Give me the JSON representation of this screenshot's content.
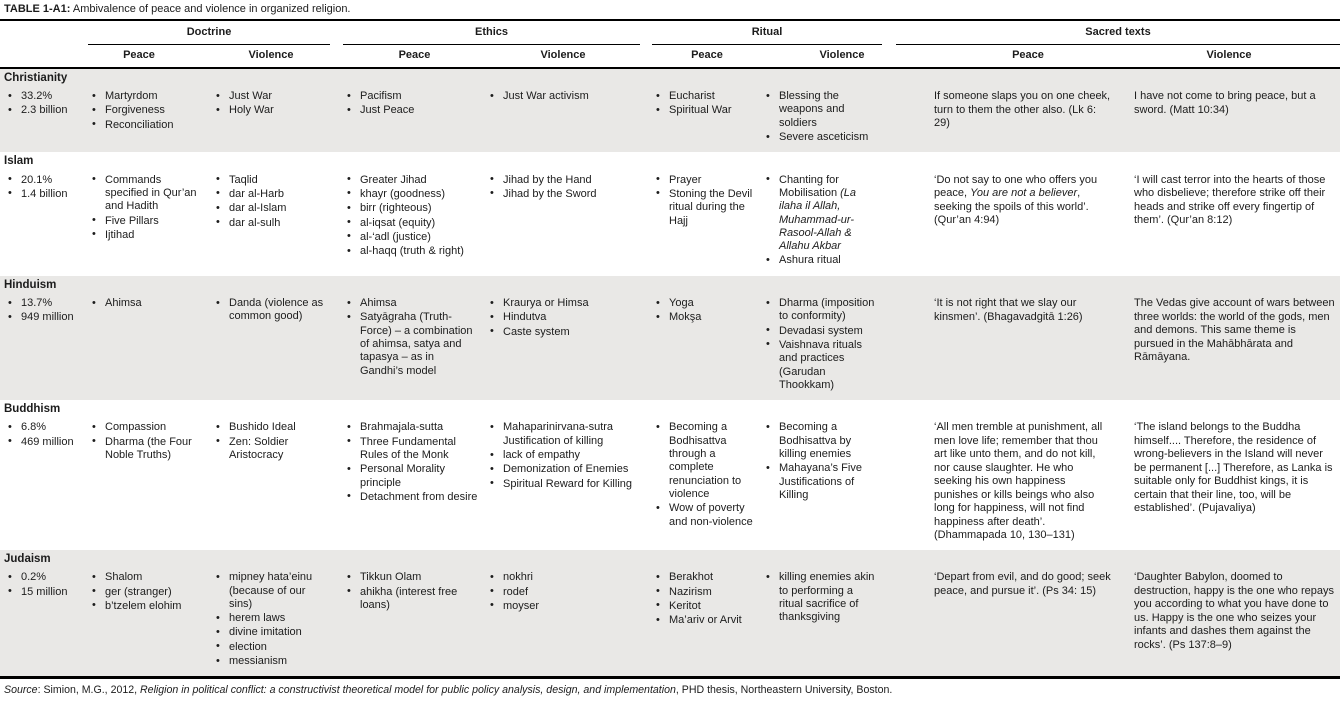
{
  "title": {
    "label": "TABLE 1-A1:",
    "text": " Ambivalence of peace and violence in organized religion."
  },
  "columns": {
    "groups": [
      {
        "label": "Doctrine"
      },
      {
        "label": "Ethics"
      },
      {
        "label": "Ritual"
      },
      {
        "label": "Sacred texts"
      }
    ],
    "subheaders": {
      "peace": "Peace",
      "violence": "Violence"
    }
  },
  "religions": [
    {
      "name": "Christianity",
      "stats": [
        "33.2%",
        "2.3 billion"
      ],
      "doctrine_peace": [
        "Martyrdom",
        "Forgiveness",
        "Reconciliation"
      ],
      "doctrine_violence": [
        "Just War",
        "Holy War"
      ],
      "ethics_peace": [
        "Pacifism",
        "Just Peace"
      ],
      "ethics_violence": [
        "Just War activism"
      ],
      "ritual_peace": [
        "Eucharist",
        "Spiritual War"
      ],
      "ritual_violence": [
        "Blessing the weapons and soldiers",
        "Severe asceticism"
      ],
      "sacred_peace": "If someone slaps you on one cheek, turn to them the other also. (Lk 6: 29)",
      "sacred_violence": "I have not come to bring peace, but a sword. (Matt 10:34)"
    },
    {
      "name": "Islam",
      "stats": [
        "20.1%",
        "1.4 billion"
      ],
      "doctrine_peace": [
        "Commands specified in Qur’an and Hadith",
        "Five Pillars",
        "Ijtihad"
      ],
      "doctrine_violence": [
        "Taqlid",
        "dar al-Harb",
        "dar al-Islam",
        "dar al-sulh"
      ],
      "ethics_peace": [
        "Greater Jihad",
        "khayr (goodness)",
        "birr (righteous)",
        "al-iqsat (equity)",
        "al-‘adl (justice)",
        "al-haqq (truth & right)"
      ],
      "ethics_violence": [
        "Jihad by the Hand",
        "Jihad by the Sword"
      ],
      "ritual_peace": [
        "Prayer",
        "Stoning the Devil ritual during the Hajj"
      ],
      "ritual_violence": [
        [
          {
            "t": "Chanting for Mobilisation "
          },
          {
            "t": "(La ilaha il Allah, Muhammad-ur-Rasool-Allah & Allahu Akbar",
            "i": true
          }
        ],
        "Ashura ritual"
      ],
      "sacred_peace": [
        {
          "t": "‘Do not say to one who offers you peace, "
        },
        {
          "t": "You are not a believer",
          "i": true
        },
        {
          "t": ", seeking the spoils of this world’. (Qur’an 4:94)"
        }
      ],
      "sacred_violence": "‘I will cast terror into the hearts of those who disbelieve; therefore strike off their heads and strike off every fingertip of them’. (Qur’an 8:12)"
    },
    {
      "name": "Hinduism",
      "stats": [
        "13.7%",
        "949 million"
      ],
      "doctrine_peace": [
        "Ahimsa"
      ],
      "doctrine_violence": [
        "Danda (violence as common good)"
      ],
      "ethics_peace": [
        "Ahimsa",
        "Satyāgraha (Truth-Force) – a combination of ahimsa, satya and tapasya – as in Gandhi’s model"
      ],
      "ethics_violence": [
        "Kraurya or Himsa",
        "Hindutva",
        "Caste system"
      ],
      "ritual_peace": [
        "Yoga",
        "Mokşa"
      ],
      "ritual_violence": [
        "Dharma (imposition to conformity)",
        "Devadasi system",
        "Vaishnava rituals and practices (Garudan Thookkam)"
      ],
      "sacred_peace": "‘It is not right that we slay our kinsmen’. (Bhagavadgitā 1:26)",
      "sacred_violence": "The Vedas give account of wars between three worlds: the world of the gods, men and demons. This same theme is pursued in the Mahābhārata and Rāmāyana."
    },
    {
      "name": "Buddhism",
      "stats": [
        "6.8%",
        "469 million"
      ],
      "doctrine_peace": [
        "Compassion",
        "Dharma (the Four Noble Truths)"
      ],
      "doctrine_violence": [
        "Bushido Ideal",
        "Zen: Soldier Aristocracy"
      ],
      "ethics_peace": [
        "Brahmajala-sutta",
        "Three Fundamental Rules of the Monk",
        "Personal Morality principle",
        "Detachment from desire"
      ],
      "ethics_violence": [
        "Mahaparinirvana-sutra Justification of killing",
        "lack of empathy",
        "Demonization of Enemies",
        "Spiritual Reward for Killing"
      ],
      "ritual_peace": [
        "Becoming a Bodhisattva through a complete renunciation to violence",
        "Wow of poverty and non-violence"
      ],
      "ritual_violence": [
        "Becoming a Bodhisattva by killing enemies",
        "Mahayana’s Five Justifications of Killing"
      ],
      "sacred_peace": "‘All men tremble at punishment, all men love life; remember that thou art like unto them, and do not kill, nor cause slaughter. He who seeking his own happiness punishes or kills beings who also long for happiness, will not find happiness after death’. (Dhammapada 10, 130–131)",
      "sacred_violence": "‘The island belongs to the Buddha himself.... Therefore, the residence of wrong-believers in the Island will never be permanent [...] Therefore, as Lanka is suitable only for Buddhist kings, it is certain that their line, too, will be established’. (Pujavaliya)"
    },
    {
      "name": "Judaism",
      "stats": [
        "0.2%",
        "15 million"
      ],
      "doctrine_peace": [
        "Shalom",
        "ger (stranger)",
        "b’tzelem elohim"
      ],
      "doctrine_violence": [
        "mipney hata’einu (because of our sins)",
        "herem laws",
        "divine imitation",
        "election",
        "messianism"
      ],
      "ethics_peace": [
        "Tikkun Olam",
        "ahikha (interest free loans)"
      ],
      "ethics_violence": [
        "nokhri",
        "rodef",
        "moyser"
      ],
      "ritual_peace": [
        "Berakhot",
        "Nazirism",
        "Keritot",
        "Ma’ariv or Arvit"
      ],
      "ritual_violence": [
        "killing enemies akin to performing a ritual sacrifice of thanksgiving"
      ],
      "sacred_peace": "‘Depart from evil, and do good; seek peace, and pursue it’. (Ps 34: 15)",
      "sacred_violence": "‘Daughter Babylon, doomed to destruction, happy is the one who repays you according to what you have done to us. Happy is the one who seizes your infants and dashes them against the rocks’. (Ps 137:8–9)"
    }
  ],
  "source": {
    "segments": [
      {
        "t": "Source",
        "i": true
      },
      {
        "t": ": Simion, M.G., 2012, "
      },
      {
        "t": "Religion in political conflict: a constructivist theoretical model for public policy analysis, design, and implementation",
        "i": true
      },
      {
        "t": ", PHD thesis, Northeastern University, Boston."
      }
    ]
  },
  "colors": {
    "band_gray": "#e9e8e6",
    "text": "#1c1c1c",
    "rule": "#000000"
  }
}
